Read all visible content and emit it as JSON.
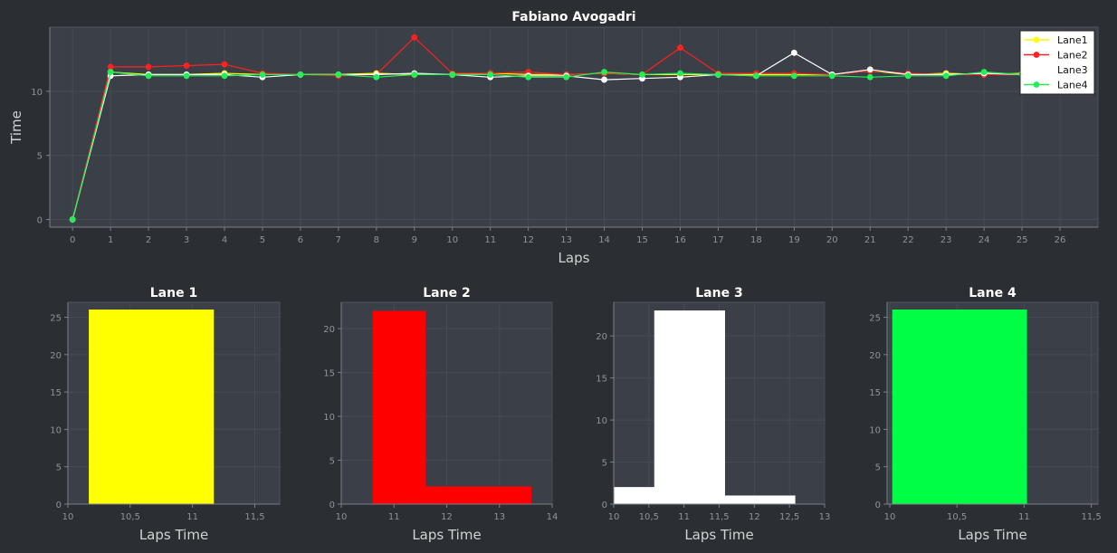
{
  "chart_data": [
    {
      "type": "line",
      "title": "Fabiano Avogadri",
      "xlabel": "Laps",
      "ylabel": "Time",
      "xlim": [
        -0.6,
        27
      ],
      "ylim": [
        -0.6,
        15
      ],
      "xticks": [
        0,
        1,
        2,
        3,
        4,
        5,
        6,
        7,
        8,
        9,
        10,
        11,
        12,
        13,
        14,
        15,
        16,
        17,
        18,
        19,
        20,
        21,
        22,
        23,
        24,
        25,
        26
      ],
      "yticks": [
        0,
        5,
        10
      ],
      "grid": true,
      "legend_position": "top-right",
      "x": [
        0,
        1,
        2,
        3,
        4,
        5,
        6,
        7,
        8,
        9,
        10,
        11,
        12,
        13,
        14,
        15,
        16,
        17,
        18,
        19,
        20,
        21,
        22,
        23,
        24,
        25
      ],
      "series": [
        {
          "name": "Lane1",
          "color": "#ffff00",
          "values": [
            0,
            11.5,
            11.3,
            11.3,
            11.4,
            11.3,
            11.3,
            11.3,
            11.4,
            11.3,
            11.3,
            11.4,
            11.3,
            11.3,
            11.4,
            11.3,
            11.3,
            11.3,
            11.3,
            11.3,
            11.3,
            11.6,
            11.3,
            11.4,
            11.3,
            11.4
          ]
        },
        {
          "name": "Lane2",
          "color": "#ff2020",
          "values": [
            0,
            11.9,
            11.9,
            12.0,
            12.1,
            11.4,
            11.3,
            11.2,
            11.3,
            14.2,
            11.4,
            11.4,
            11.5,
            11.3,
            11.4,
            11.3,
            13.4,
            11.4,
            11.4,
            11.4,
            11.3,
            11.6,
            11.4,
            11.3,
            11.3,
            11.3
          ]
        },
        {
          "name": "Lane3",
          "color": "#ffffff",
          "values": [
            0,
            11.2,
            11.3,
            11.3,
            11.3,
            11.1,
            11.3,
            11.3,
            11.3,
            11.4,
            11.3,
            11.1,
            11.2,
            11.2,
            10.9,
            11.0,
            11.1,
            11.3,
            11.2,
            13.0,
            11.3,
            11.7,
            11.3,
            11.3,
            11.4,
            11.3
          ]
        },
        {
          "name": "Lane4",
          "color": "#22ee55",
          "values": [
            0,
            11.5,
            11.2,
            11.2,
            11.2,
            11.3,
            11.3,
            11.3,
            11.1,
            11.3,
            11.3,
            11.3,
            11.1,
            11.1,
            11.5,
            11.3,
            11.4,
            11.3,
            11.2,
            11.2,
            11.2,
            11.1,
            11.2,
            11.2,
            11.5,
            11.3
          ]
        }
      ]
    },
    {
      "type": "bar",
      "title": "Lane 1",
      "xlabel": "Laps Time",
      "ylabel": "",
      "color": "#ffff00",
      "xlim": [
        10,
        11.7
      ],
      "ylim": [
        0,
        27
      ],
      "xticks": [
        10,
        10.5,
        11,
        11.5
      ],
      "xtick_labels": [
        "10",
        "10,5",
        "11",
        "11,5"
      ],
      "yticks": [
        0,
        5,
        10,
        15,
        20,
        25
      ],
      "bins": [
        {
          "x0": 10.17,
          "x1": 11.17,
          "count": 26
        }
      ]
    },
    {
      "type": "bar",
      "title": "Lane 2",
      "xlabel": "Laps Time",
      "ylabel": "",
      "color": "#ff0000",
      "xlim": [
        10,
        14
      ],
      "ylim": [
        0,
        23
      ],
      "xticks": [
        10,
        11,
        12,
        13,
        14
      ],
      "xtick_labels": [
        "10",
        "11",
        "12",
        "13",
        "14"
      ],
      "yticks": [
        0,
        5,
        10,
        15,
        20
      ],
      "bins": [
        {
          "x0": 10.6,
          "x1": 11.6,
          "count": 22
        },
        {
          "x0": 11.6,
          "x1": 12.6,
          "count": 2
        },
        {
          "x0": 12.6,
          "x1": 13.6,
          "count": 2
        }
      ]
    },
    {
      "type": "bar",
      "title": "Lane 3",
      "xlabel": "Laps Time",
      "ylabel": "",
      "color": "#ffffff",
      "xlim": [
        10,
        13
      ],
      "ylim": [
        0,
        24
      ],
      "xticks": [
        10,
        10.5,
        11,
        11.5,
        12,
        12.5,
        13
      ],
      "xtick_labels": [
        "10",
        "10,5",
        "11",
        "11,5",
        "12",
        "12,5",
        "13"
      ],
      "yticks": [
        0,
        5,
        10,
        15,
        20
      ],
      "bins": [
        {
          "x0": 10.0,
          "x1": 10.58,
          "count": 2
        },
        {
          "x0": 10.58,
          "x1": 11.58,
          "count": 23
        },
        {
          "x0": 11.58,
          "x1": 12.58,
          "count": 1
        }
      ]
    },
    {
      "type": "bar",
      "title": "Lane 4",
      "xlabel": "Laps Time",
      "ylabel": "",
      "color": "#00ff44",
      "xlim": [
        9.98,
        11.55
      ],
      "ylim": [
        0,
        27
      ],
      "xticks": [
        10,
        10.5,
        11,
        11.5
      ],
      "xtick_labels": [
        "10",
        "10,5",
        "11",
        "11,5"
      ],
      "yticks": [
        0,
        5,
        10,
        15,
        20,
        25
      ],
      "bins": [
        {
          "x0": 10.02,
          "x1": 11.02,
          "count": 26
        }
      ]
    }
  ]
}
